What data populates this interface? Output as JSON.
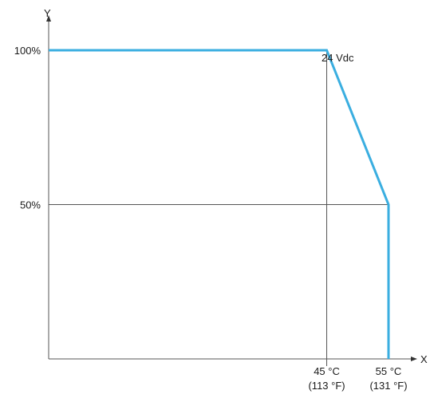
{
  "chart_data": {
    "type": "line",
    "title": "",
    "xlabel": "X",
    "ylabel": "Y",
    "x_ticks": [
      {
        "value": 45,
        "label": "45 °C",
        "sublabel": "(113 °F)"
      },
      {
        "value": 55,
        "label": "55 °C",
        "sublabel": "(131 °F)"
      }
    ],
    "y_ticks": [
      {
        "value": 50,
        "label": "50%"
      },
      {
        "value": 100,
        "label": "100%"
      }
    ],
    "xlim": [
      0,
      55
    ],
    "ylim": [
      0,
      100
    ],
    "series": [
      {
        "name": "24 Vdc",
        "color": "#3aaee0",
        "points": [
          {
            "x": 0,
            "y": 100
          },
          {
            "x": 45,
            "y": 100
          },
          {
            "x": 55,
            "y": 50
          },
          {
            "x": 55,
            "y": 0
          }
        ]
      }
    ],
    "grid": "reference lines at tick values",
    "axis_color": "#555555"
  }
}
